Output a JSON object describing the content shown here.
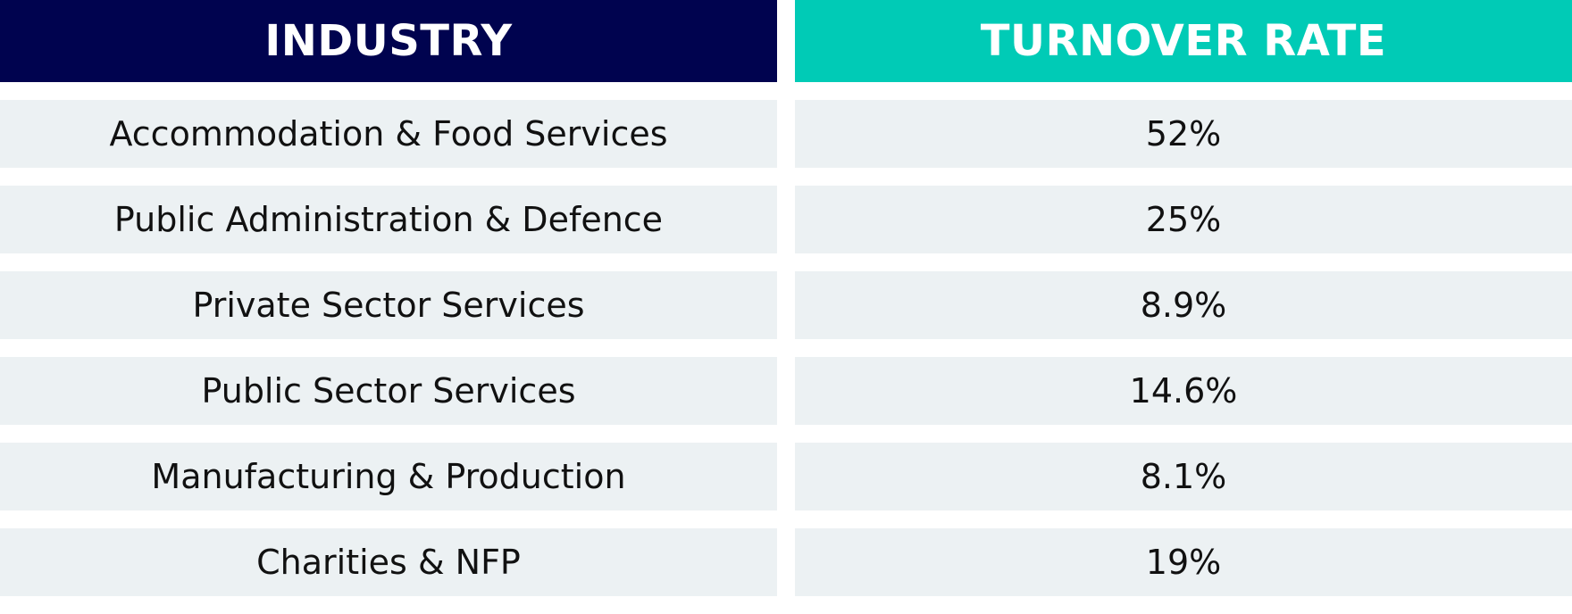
{
  "colors": {
    "industry_header_bg": "#00034f",
    "rate_header_bg": "#00cbb6",
    "row_bg": "#ecf1f3",
    "header_text": "#ffffff",
    "cell_text": "#111111"
  },
  "table": {
    "headers": {
      "industry": "INDUSTRY",
      "turnover_rate": "TURNOVER RATE"
    },
    "rows": [
      {
        "industry": "Accommodation & Food Services",
        "rate": "52%"
      },
      {
        "industry": "Public Administration & Defence",
        "rate": "25%"
      },
      {
        "industry": "Private Sector Services",
        "rate": "8.9%"
      },
      {
        "industry": "Public Sector Services",
        "rate": "14.6%"
      },
      {
        "industry": "Manufacturing & Production",
        "rate": "8.1%"
      },
      {
        "industry": "Charities & NFP",
        "rate": "19%"
      }
    ]
  }
}
